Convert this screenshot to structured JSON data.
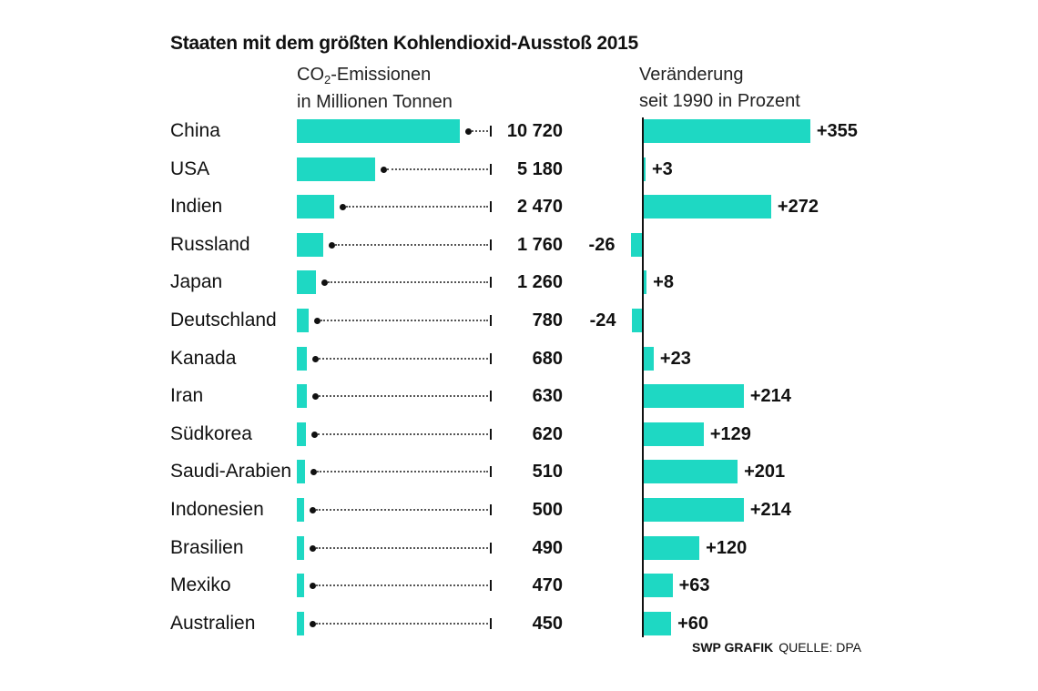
{
  "title": "Staaten mit dem größten Kohlendioxid-Ausstoß 2015",
  "left_header": {
    "line1_pre": "CO",
    "line1_sub": "2",
    "line1_post": "-Emissionen",
    "line2": "in Millionen Tonnen"
  },
  "right_header": {
    "line1": "Veränderung",
    "line2": "seit 1990 in Prozent"
  },
  "source": {
    "brand": "SWP GRAFIK",
    "text": "QUELLE: DPA"
  },
  "colors": {
    "bar": "#1ed8c3",
    "text": "#111111"
  },
  "chart_data": {
    "type": "bar",
    "categories": [
      "China",
      "USA",
      "Indien",
      "Russland",
      "Japan",
      "Deutschland",
      "Kanada",
      "Iran",
      "Südkorea",
      "Saudi-Arabien",
      "Indonesien",
      "Brasilien",
      "Mexiko",
      "Australien"
    ],
    "series": [
      {
        "name": "CO₂-Emissionen in Millionen Tonnen",
        "values": [
          10720,
          5180,
          2470,
          1760,
          1260,
          780,
          680,
          630,
          620,
          510,
          500,
          490,
          470,
          450
        ],
        "labels": [
          "10 720",
          "5 180",
          "2 470",
          "1 760",
          "1 260",
          "780",
          "680",
          "630",
          "620",
          "510",
          "500",
          "490",
          "470",
          "450"
        ]
      },
      {
        "name": "Veränderung seit 1990 in Prozent",
        "values": [
          355,
          3,
          272,
          -26,
          8,
          -24,
          23,
          214,
          129,
          201,
          214,
          120,
          63,
          60
        ],
        "labels": [
          "+355",
          "+3",
          "+272",
          "-26",
          "+8",
          "-24",
          "+23",
          "+214",
          "+129",
          "+201",
          "+214",
          "+120",
          "+63",
          "+60"
        ]
      }
    ],
    "xlim_left": [
      0,
      10720
    ],
    "xlim_right": [
      -26,
      355
    ],
    "grid": false,
    "legend": "none"
  }
}
